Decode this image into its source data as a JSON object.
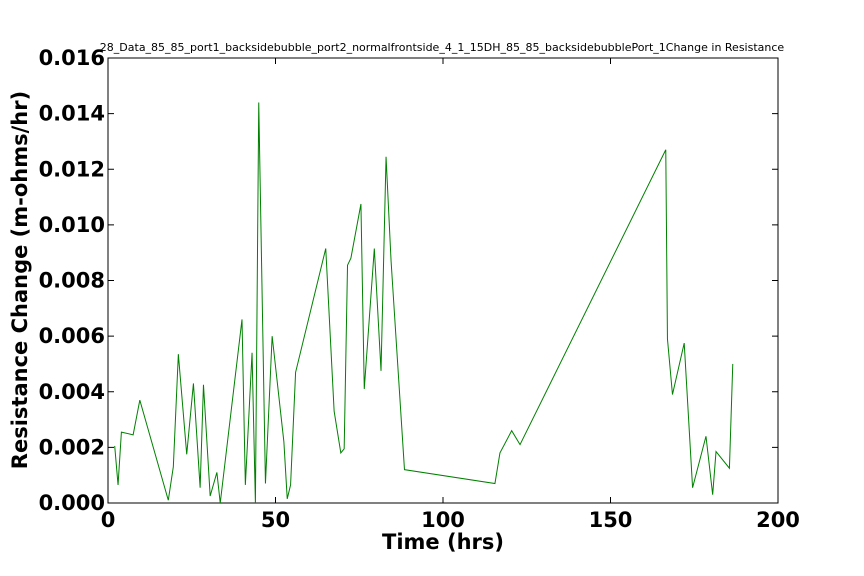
{
  "chart_data": {
    "type": "line",
    "title": "28_Data_85_85_port1_backsidebubble_port2_normalfrontside_4_1_15DH_85_85_backsidebubblePort_1Change in Resistance",
    "xlabel": "Time (hrs)",
    "ylabel": "Resistance Change (m-ohms/hr)",
    "xlim": [
      0,
      200
    ],
    "ylim": [
      0,
      0.016
    ],
    "xticks": [
      "0",
      "50",
      "100",
      "150",
      "200"
    ],
    "yticks": [
      "0.000",
      "0.002",
      "0.004",
      "0.006",
      "0.008",
      "0.010",
      "0.012",
      "0.014",
      "0.016"
    ],
    "grid": false,
    "series": [
      {
        "color": "#008000",
        "x": [
          2.0,
          3.0,
          4.0,
          7.5,
          9.5,
          18.0,
          19.5,
          21.0,
          23.5,
          25.5,
          27.5,
          28.5,
          30.5,
          32.5,
          33.5,
          40.0,
          41.0,
          43.0,
          44.0,
          45.0,
          47.0,
          49.0,
          52.5,
          53.5,
          54.5,
          56.0,
          65.0,
          67.5,
          69.5,
          70.5,
          71.5,
          72.5,
          75.5,
          76.5,
          79.5,
          81.5,
          83.0,
          84.5,
          88.5,
          115.5,
          117.0,
          120.5,
          123.0,
          166.5,
          167.0,
          168.5,
          172.0,
          174.5,
          178.5,
          180.5,
          181.5,
          185.5,
          186.5
        ],
        "y": [
          0.00205,
          0.00065,
          0.00255,
          0.00245,
          0.0037,
          0.0001,
          0.0013,
          0.00535,
          0.00175,
          0.0043,
          0.00055,
          0.00425,
          0.00025,
          0.0011,
          0.0,
          0.0066,
          0.00065,
          0.0054,
          0.0,
          0.0144,
          0.0007,
          0.006,
          0.0022,
          0.00015,
          0.00065,
          0.0047,
          0.00915,
          0.0033,
          0.0018,
          0.00195,
          0.00855,
          0.0088,
          0.01075,
          0.0041,
          0.00915,
          0.00475,
          0.01245,
          0.0087,
          0.0012,
          0.0007,
          0.0018,
          0.0026,
          0.0021,
          0.0127,
          0.0059,
          0.0039,
          0.00575,
          0.00055,
          0.0024,
          0.0003,
          0.00185,
          0.00125,
          0.005
        ]
      }
    ]
  }
}
